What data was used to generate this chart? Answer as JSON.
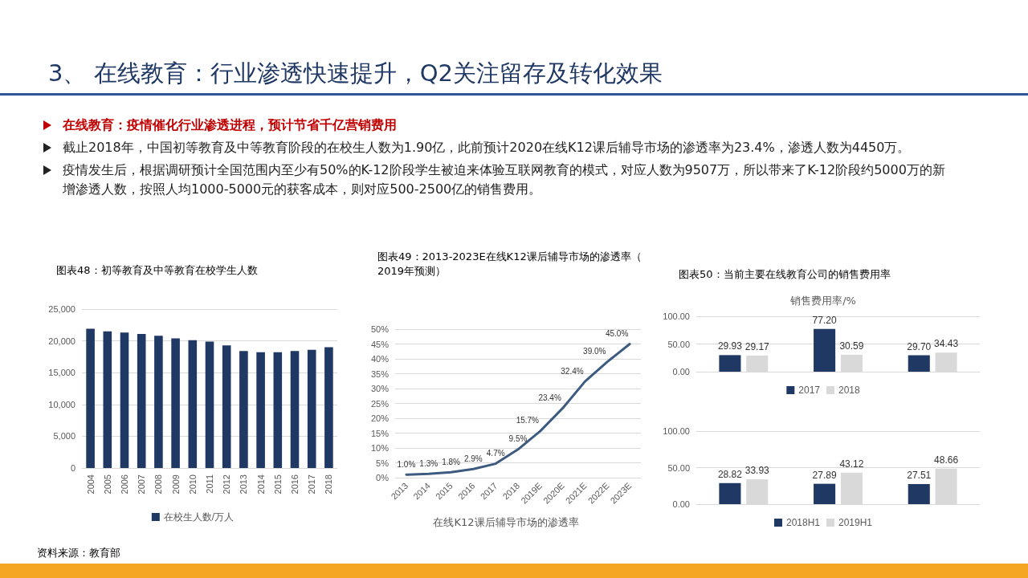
{
  "chart_data": [
    {
      "type": "bar",
      "title": "图表48：初等教育及中等教育在校学生人数",
      "categories": [
        "2004",
        "2005",
        "2006",
        "2007",
        "2008",
        "2009",
        "2010",
        "2011",
        "2012",
        "2013",
        "2014",
        "2015",
        "2016",
        "2017",
        "2018"
      ],
      "series": [
        {
          "name": "在校生人数/万人",
          "color": "#1f3864",
          "values": [
            21900,
            21500,
            21300,
            21100,
            20800,
            20400,
            20100,
            19900,
            19300,
            18400,
            18200,
            18200,
            18400,
            18600,
            19000
          ]
        }
      ],
      "ylim": [
        0,
        25000
      ],
      "yticks": [
        0,
        {
          "value": 5000,
          "label": "5,000"
        },
        {
          "value": 10000,
          "label": "10,000"
        },
        {
          "value": 15000,
          "label": "15,000"
        },
        {
          "value": 20000,
          "label": "20,000"
        },
        {
          "value": 25000,
          "label": "25,000"
        }
      ],
      "grid": "y",
      "legend": "bottom",
      "annotations": [
        "3、 在线教育：行业渗透快速提升，Q2关注留存及转化效果",
        "在线教育：疫情催化行业渗透进程，预计节省千亿营销费用",
        "截止2018年，中国初等教育及中等教育阶段的在校生人数为1.90亿，此前预计2020在线K12课后辅导市场的渗透率为23.4%，渗透人数为4450万。",
        "疫情发生后，根据调研预计全国范围内至少有50%的K-12阶段学生被迫来体验互联网教育的模式，对应人数为9507万，所以带来了K-12阶段约5000万的新增渗透人数，按照人均1000-5000元的获客成本，则对应500-2500亿的销售费用。",
        "资料来源：教育部"
      ]
    },
    {
      "type": "line",
      "title": "图表49：2013-2023E在线K12课后辅导市场的渗透率（2019年预测）",
      "categories": [
        "2013",
        "2014",
        "2015",
        "2016",
        "2017",
        "2018",
        "2019E",
        "2020E",
        "2021E",
        "2022E",
        "2023E"
      ],
      "series": [
        {
          "color": "#3d5a80",
          "values": [
            1.0,
            1.3,
            1.8,
            2.9,
            4.7,
            9.5,
            15.7,
            23.4,
            32.4,
            39.0,
            45.0
          ],
          "value_labels": [
            "1.0%",
            "1.3%",
            "1.8%",
            "2.9%",
            "4.7%",
            "9.5%",
            "15.7%",
            "23.4%",
            "32.4%",
            "39.0%",
            "45.0%"
          ]
        }
      ],
      "xlabel": "在线K12课后辅导市场的渗透率",
      "ylim": [
        0,
        50
      ],
      "yticks": [
        {
          "value": 0,
          "label": "0%"
        },
        {
          "value": 5,
          "label": "5%"
        },
        {
          "value": 10,
          "label": "10%"
        },
        {
          "value": 15,
          "label": "15%"
        },
        {
          "value": 20,
          "label": "20%"
        },
        {
          "value": 25,
          "label": "25%"
        },
        {
          "value": 30,
          "label": "30%"
        },
        {
          "value": 35,
          "label": "35%"
        },
        {
          "value": 40,
          "label": "40%"
        },
        {
          "value": 45,
          "label": "45%"
        },
        {
          "value": 50,
          "label": "50%"
        }
      ],
      "grid": "y",
      "marker": "none",
      "line_style": "solid"
    },
    {
      "type": "bar",
      "title": "图表50：当前主要在线教育公司的销售费用率",
      "subtitle": "销售费用率/%",
      "categories": [
        null,
        null,
        null
      ],
      "series": [
        {
          "name": "2017",
          "color": "#1f3864",
          "values": [
            29.93,
            77.2,
            29.7
          ],
          "value_labels": [
            "29.93",
            "77.20",
            "29.70"
          ]
        },
        {
          "name": "2018",
          "color": "#d9d9d9",
          "values": [
            29.17,
            30.59,
            34.43
          ],
          "value_labels": [
            "29.17",
            "30.59",
            "34.43"
          ]
        }
      ],
      "ylim": [
        0,
        100
      ],
      "yticks": [
        {
          "value": 0,
          "label": "0.00"
        },
        {
          "value": 50,
          "label": "50.00"
        },
        {
          "value": 100,
          "label": "100.00"
        }
      ],
      "grid": "y",
      "legend": "bottom"
    },
    {
      "type": "bar",
      "categories": [
        null,
        null,
        null
      ],
      "series": [
        {
          "name": "2018H1",
          "color": "#1f3864",
          "values": [
            28.82,
            27.89,
            27.51
          ],
          "value_labels": [
            "28.82",
            "27.89",
            "27.51"
          ]
        },
        {
          "name": "2019H1",
          "color": "#d9d9d9",
          "values": [
            33.93,
            43.12,
            48.66
          ],
          "value_labels": [
            "33.93",
            "43.12",
            "48.66"
          ]
        }
      ],
      "ylim": [
        0,
        100
      ],
      "yticks": [
        {
          "value": 0,
          "label": "0.00"
        },
        {
          "value": 50,
          "label": "50.00"
        },
        {
          "value": 100,
          "label": "100.00"
        }
      ],
      "grid": "y",
      "legend": "bottom"
    }
  ]
}
